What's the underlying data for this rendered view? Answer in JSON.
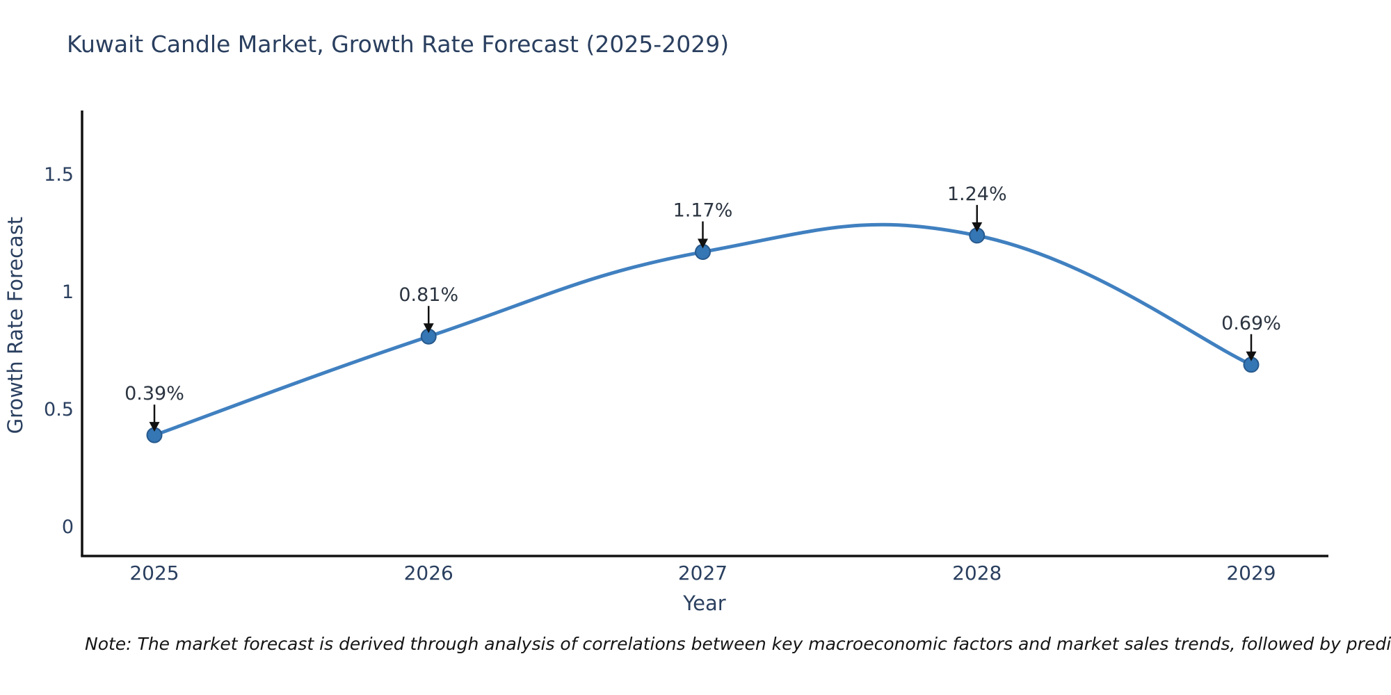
{
  "chart_data": {
    "type": "line",
    "title": "Kuwait Candle Market, Growth Rate Forecast (2025-2029)",
    "xlabel": "Year",
    "ylabel": "Growth Rate Forecast",
    "categories": [
      "2025",
      "2026",
      "2027",
      "2028",
      "2029"
    ],
    "values": [
      0.39,
      0.81,
      1.17,
      1.24,
      0.69
    ],
    "point_labels": [
      "0.39%",
      "0.81%",
      "1.17%",
      "1.24%",
      "0.69%"
    ],
    "series": [
      {
        "name": "Growth Rate Forecast",
        "values": [
          0.39,
          0.81,
          1.17,
          1.24,
          0.69
        ]
      }
    ],
    "yticks": [
      0,
      0.5,
      1,
      1.5
    ],
    "ytick_labels": [
      "0",
      "0.5",
      "1",
      "1.5"
    ],
    "ylim": [
      -0.12,
      1.9
    ],
    "line_shape": "spline",
    "grid": false,
    "legend": false,
    "annotations_style": "value-label-with-down-arrow",
    "note": "Note: The market forecast is derived through analysis of correlations between key macroeconomic factors and market sales trends, followed by predictive modeling to project future sales",
    "colors": {
      "line": "#4080c0",
      "marker_fill": "#3576b5",
      "marker_edge": "#27598c",
      "axis": "#111111",
      "title_text": "#2a3f5f",
      "tick_text": "#2a3f5f",
      "annotation_text": "#2b3440",
      "arrow": "#111111",
      "note_text": "#141414",
      "background": "#ffffff"
    }
  }
}
